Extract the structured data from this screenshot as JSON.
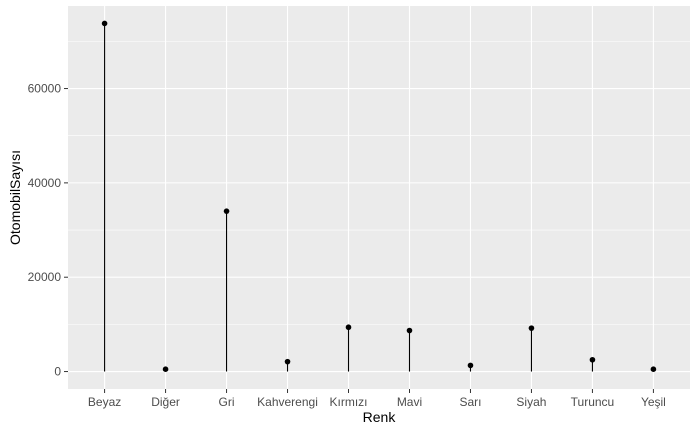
{
  "chart_data": {
    "type": "lollipop",
    "categories": [
      "Beyaz",
      "Diğer",
      "Gri",
      "Kahverengi",
      "Kırmızı",
      "Mavi",
      "Sarı",
      "Siyah",
      "Turuncu",
      "Yeşil"
    ],
    "values": [
      73800,
      500,
      34000,
      2100,
      9400,
      8700,
      1300,
      9200,
      2500,
      500
    ],
    "xlabel": "Renk",
    "ylabel": "OtomobilSayısı",
    "yticks": [
      0,
      20000,
      40000,
      60000
    ],
    "ylim": [
      -3700,
      77500
    ],
    "grid": true,
    "colors": {
      "panel": "#ebebeb",
      "grid_major": "#ffffff",
      "mark": "#000000",
      "tick_text": "#4d4d4d"
    }
  }
}
